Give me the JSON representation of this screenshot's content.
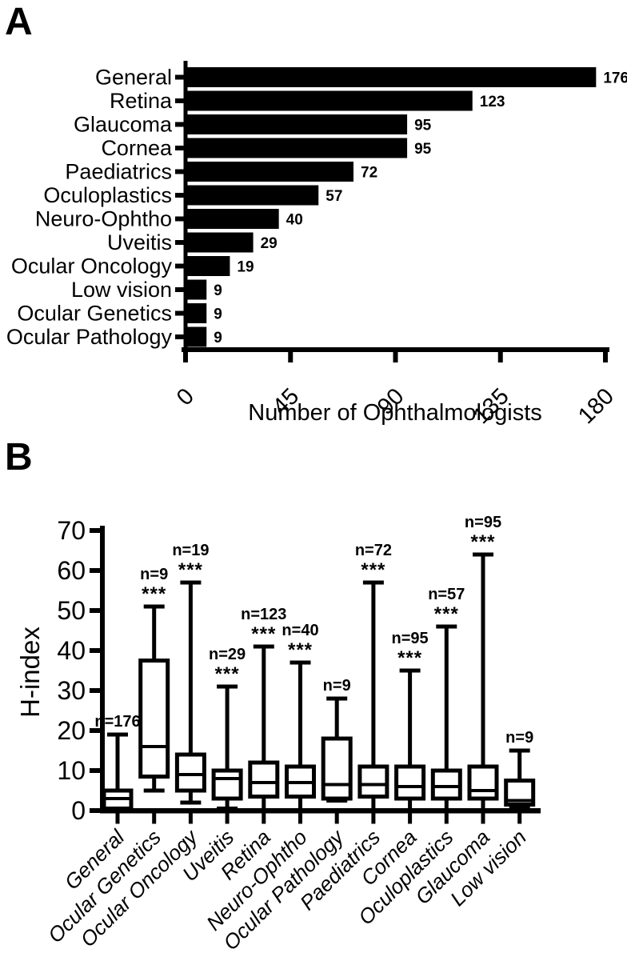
{
  "figure": {
    "background": "#ffffff",
    "ink_color": "#000000"
  },
  "panelA": {
    "label": "A",
    "chart_data": {
      "type": "bar",
      "orientation": "horizontal",
      "title": "",
      "xlabel": "Number of Ophthalmologists",
      "ylabel": "",
      "categories": [
        "General",
        "Retina",
        "Glaucoma",
        "Cornea",
        "Paediatrics",
        "Oculoplastics",
        "Neuro-Ophtho",
        "Uveitis",
        "Ocular Oncology",
        "Low vision",
        "Ocular Genetics",
        "Ocular Pathology"
      ],
      "values": [
        176,
        123,
        95,
        95,
        72,
        57,
        40,
        29,
        19,
        9,
        9,
        9
      ],
      "bar_value_labels": [
        "176",
        "123",
        "95",
        "95",
        "72",
        "57",
        "40",
        "29",
        "19",
        "9",
        "9",
        "9"
      ],
      "xticks": [
        0,
        45,
        90,
        135,
        180
      ],
      "xlim": [
        0,
        180
      ],
      "grid": false,
      "bar_color": "#000000"
    }
  },
  "panelB": {
    "label": "B",
    "chart_data": {
      "type": "boxplot",
      "title": "",
      "xlabel": "",
      "ylabel": "H-index",
      "yticks": [
        0,
        10,
        20,
        30,
        40,
        50,
        60,
        70
      ],
      "ylim": [
        0,
        70
      ],
      "grid": false,
      "categories": [
        "General",
        "Ocular Genetics",
        "Ocular Oncology",
        "Uveitis",
        "Retina",
        "Neuro-Ophtho",
        "Ocular Pathology",
        "Paediatrics",
        "Cornea",
        "Oculoplastics",
        "Glaucoma",
        "Low vision"
      ],
      "boxes": [
        {
          "category": "General",
          "n_label": "n=176",
          "significance": "",
          "min": 0,
          "q1": 0.5,
          "median": 3,
          "q3": 5,
          "max": 19
        },
        {
          "category": "Ocular Genetics",
          "n_label": "n=9",
          "significance": "***",
          "min": 5,
          "q1": 8.5,
          "median": 16,
          "q3": 37.5,
          "max": 51
        },
        {
          "category": "Ocular Oncology",
          "n_label": "n=19",
          "significance": "***",
          "min": 2,
          "q1": 5,
          "median": 9,
          "q3": 14,
          "max": 57
        },
        {
          "category": "Uveitis",
          "n_label": "n=29",
          "significance": "***",
          "min": 0.5,
          "q1": 3,
          "median": 8,
          "q3": 10,
          "max": 31
        },
        {
          "category": "Retina",
          "n_label": "n=123",
          "significance": "***",
          "min": 0,
          "q1": 3.5,
          "median": 7,
          "q3": 12,
          "max": 41
        },
        {
          "category": "Neuro-Ophtho",
          "n_label": "n=40",
          "significance": "***",
          "min": 0,
          "q1": 3.5,
          "median": 7,
          "q3": 11,
          "max": 37
        },
        {
          "category": "Ocular Pathology",
          "n_label": "n=9",
          "significance": "",
          "min": 2.5,
          "q1": 3,
          "median": 6.5,
          "q3": 18,
          "max": 28
        },
        {
          "category": "Paediatrics",
          "n_label": "n=72",
          "significance": "***",
          "min": 0,
          "q1": 3.5,
          "median": 6.5,
          "q3": 11,
          "max": 57
        },
        {
          "category": "Cornea",
          "n_label": "n=95",
          "significance": "***",
          "min": 0,
          "q1": 3,
          "median": 6,
          "q3": 11,
          "max": 35
        },
        {
          "category": "Oculoplastics",
          "n_label": "n=57",
          "significance": "***",
          "min": 0,
          "q1": 3,
          "median": 6,
          "q3": 10,
          "max": 46
        },
        {
          "category": "Glaucoma",
          "n_label": "n=95",
          "significance": "***",
          "min": 0,
          "q1": 3,
          "median": 5,
          "q3": 11,
          "max": 64
        },
        {
          "category": "Low vision",
          "n_label": "n=9",
          "significance": "",
          "min": 1,
          "q1": 1.5,
          "median": 2.5,
          "q3": 7.5,
          "max": 15
        }
      ]
    }
  }
}
